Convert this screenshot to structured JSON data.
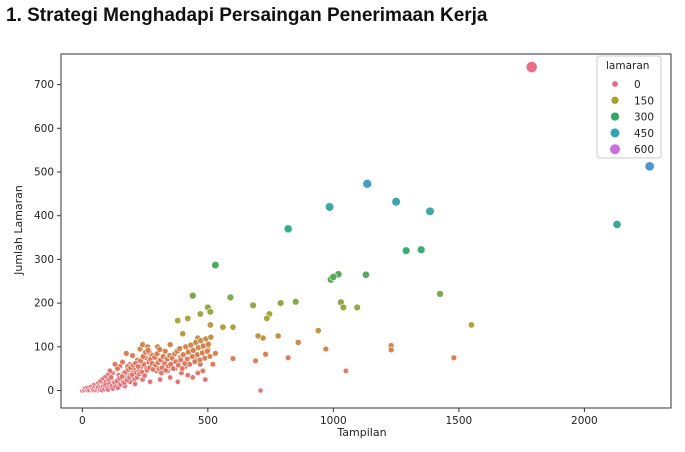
{
  "heading": "1. Strategi Menghadapi Persaingan Penerimaan Kerja",
  "chart_data": {
    "type": "scatter",
    "title": "",
    "xlabel": "Tampilan",
    "ylabel": "Jumlah Lamaran",
    "xlim": [
      -85,
      2345
    ],
    "ylim": [
      -40,
      770
    ],
    "xticks": [
      0,
      500,
      1000,
      1500,
      2000
    ],
    "yticks": [
      0,
      100,
      200,
      300,
      400,
      500,
      600,
      700
    ],
    "grid": false,
    "legend": {
      "title": "lamaran",
      "placement": "top-right",
      "entries": [
        {
          "label": "0",
          "color": "#e8687f",
          "size": 4
        },
        {
          "label": "150",
          "color": "#a8a130",
          "size": 5.5
        },
        {
          "label": "300",
          "color": "#33a662",
          "size": 6.5
        },
        {
          "label": "450",
          "color": "#31a3b4",
          "size": 7.2
        },
        {
          "label": "600",
          "color": "#cc6ee0",
          "size": 8.2
        }
      ]
    },
    "hue": "lamaran",
    "points": [
      [
        1790,
        740
      ],
      [
        2260,
        513
      ],
      [
        1135,
        473
      ],
      [
        1250,
        432
      ],
      [
        1385,
        410
      ],
      [
        985,
        420
      ],
      [
        2130,
        380
      ],
      [
        820,
        370
      ],
      [
        1290,
        320
      ],
      [
        1350,
        322
      ],
      [
        530,
        287
      ],
      [
        1020,
        266
      ],
      [
        1130,
        265
      ],
      [
        990,
        254
      ],
      [
        1425,
        221
      ],
      [
        1000,
        260
      ],
      [
        440,
        217
      ],
      [
        590,
        213
      ],
      [
        850,
        203
      ],
      [
        680,
        195
      ],
      [
        790,
        200
      ],
      [
        1030,
        202
      ],
      [
        1095,
        190
      ],
      [
        1040,
        190
      ],
      [
        500,
        190
      ],
      [
        470,
        175
      ],
      [
        510,
        180
      ],
      [
        745,
        175
      ],
      [
        735,
        165
      ],
      [
        1550,
        150
      ],
      [
        420,
        165
      ],
      [
        380,
        160
      ],
      [
        560,
        145
      ],
      [
        600,
        145
      ],
      [
        510,
        150
      ],
      [
        940,
        137
      ],
      [
        780,
        125
      ],
      [
        720,
        120
      ],
      [
        700,
        125
      ],
      [
        400,
        130
      ],
      [
        1230,
        103
      ],
      [
        1230,
        93
      ],
      [
        970,
        95
      ],
      [
        730,
        83
      ],
      [
        690,
        68
      ],
      [
        530,
        85
      ],
      [
        600,
        73
      ],
      [
        820,
        75
      ],
      [
        860,
        110
      ],
      [
        1480,
        75
      ],
      [
        1050,
        45
      ],
      [
        710,
        0
      ],
      [
        460,
        120
      ],
      [
        480,
        100
      ],
      [
        500,
        95
      ],
      [
        520,
        60
      ],
      [
        430,
        90
      ],
      [
        350,
        105
      ],
      [
        330,
        90
      ],
      [
        300,
        100
      ],
      [
        270,
        85
      ],
      [
        250,
        75
      ],
      [
        230,
        95
      ],
      [
        220,
        70
      ],
      [
        200,
        80
      ],
      [
        190,
        60
      ],
      [
        180,
        55
      ],
      [
        175,
        85
      ],
      [
        300,
        70
      ],
      [
        320,
        55
      ],
      [
        360,
        65
      ],
      [
        390,
        75
      ],
      [
        410,
        55
      ],
      [
        450,
        70
      ],
      [
        470,
        60
      ],
      [
        480,
        45
      ],
      [
        240,
        105
      ],
      [
        260,
        100
      ],
      [
        280,
        80
      ],
      [
        160,
        65
      ],
      [
        150,
        55
      ],
      [
        140,
        50
      ],
      [
        130,
        60
      ],
      [
        120,
        40
      ],
      [
        110,
        45
      ],
      [
        100,
        35
      ],
      [
        90,
        30
      ],
      [
        80,
        25
      ],
      [
        70,
        20
      ],
      [
        60,
        15
      ],
      [
        50,
        10
      ],
      [
        40,
        8
      ],
      [
        30,
        5
      ],
      [
        20,
        3
      ],
      [
        10,
        2
      ],
      [
        5,
        0
      ],
      [
        15,
        1
      ],
      [
        25,
        4
      ],
      [
        35,
        6
      ],
      [
        45,
        12
      ],
      [
        55,
        5
      ],
      [
        65,
        10
      ],
      [
        75,
        8
      ],
      [
        85,
        15
      ],
      [
        95,
        20
      ],
      [
        105,
        25
      ],
      [
        115,
        30
      ],
      [
        125,
        20
      ],
      [
        135,
        15
      ],
      [
        145,
        35
      ],
      [
        155,
        25
      ],
      [
        165,
        40
      ],
      [
        170,
        30
      ],
      [
        185,
        35
      ],
      [
        195,
        45
      ],
      [
        205,
        50
      ],
      [
        210,
        40
      ],
      [
        225,
        45
      ],
      [
        235,
        55
      ],
      [
        245,
        60
      ],
      [
        255,
        50
      ],
      [
        265,
        65
      ],
      [
        275,
        55
      ],
      [
        285,
        60
      ],
      [
        295,
        45
      ],
      [
        305,
        50
      ],
      [
        315,
        40
      ],
      [
        340,
        45
      ],
      [
        370,
        50
      ],
      [
        395,
        40
      ],
      [
        420,
        35
      ],
      [
        440,
        30
      ],
      [
        460,
        40
      ],
      [
        490,
        25
      ],
      [
        380,
        20
      ],
      [
        350,
        30
      ],
      [
        310,
        25
      ],
      [
        270,
        20
      ],
      [
        240,
        25
      ],
      [
        210,
        15
      ],
      [
        190,
        20
      ],
      [
        170,
        10
      ],
      [
        150,
        12
      ],
      [
        130,
        8
      ],
      [
        115,
        5
      ],
      [
        100,
        10
      ],
      [
        90,
        5
      ],
      [
        80,
        0
      ],
      [
        70,
        3
      ],
      [
        60,
        0
      ],
      [
        50,
        2
      ],
      [
        40,
        0
      ],
      [
        30,
        0
      ],
      [
        20,
        0
      ],
      [
        10,
        0
      ],
      [
        0,
        0
      ],
      [
        5,
        3
      ],
      [
        8,
        1
      ],
      [
        12,
        5
      ],
      [
        18,
        2
      ],
      [
        22,
        6
      ],
      [
        28,
        1
      ],
      [
        33,
        8
      ],
      [
        38,
        3
      ],
      [
        42,
        2
      ],
      [
        48,
        6
      ],
      [
        52,
        1
      ],
      [
        58,
        4
      ],
      [
        62,
        7
      ],
      [
        68,
        2
      ],
      [
        72,
        5
      ],
      [
        78,
        1
      ],
      [
        82,
        9
      ],
      [
        88,
        3
      ],
      [
        92,
        12
      ],
      [
        98,
        6
      ],
      [
        102,
        2
      ],
      [
        108,
        15
      ],
      [
        112,
        8
      ],
      [
        118,
        11
      ],
      [
        122,
        4
      ],
      [
        128,
        18
      ],
      [
        132,
        9
      ],
      [
        138,
        22
      ],
      [
        142,
        6
      ],
      [
        148,
        28
      ],
      [
        152,
        14
      ],
      [
        158,
        32
      ],
      [
        162,
        20
      ],
      [
        168,
        18
      ],
      [
        172,
        42
      ],
      [
        178,
        24
      ],
      [
        182,
        48
      ],
      [
        188,
        30
      ],
      [
        192,
        52
      ],
      [
        198,
        36
      ],
      [
        202,
        58
      ],
      [
        208,
        26
      ],
      [
        212,
        62
      ],
      [
        218,
        30
      ],
      [
        222,
        55
      ],
      [
        228,
        38
      ],
      [
        232,
        68
      ],
      [
        238,
        42
      ],
      [
        242,
        78
      ],
      [
        248,
        34
      ],
      [
        252,
        88
      ],
      [
        258,
        46
      ],
      [
        262,
        92
      ],
      [
        268,
        52
      ],
      [
        272,
        72
      ],
      [
        278,
        62
      ],
      [
        282,
        48
      ],
      [
        288,
        76
      ],
      [
        292,
        58
      ],
      [
        298,
        84
      ],
      [
        302,
        64
      ],
      [
        308,
        94
      ],
      [
        312,
        70
      ],
      [
        318,
        52
      ],
      [
        322,
        78
      ],
      [
        328,
        62
      ],
      [
        332,
        46
      ],
      [
        338,
        72
      ],
      [
        342,
        56
      ],
      [
        348,
        80
      ],
      [
        352,
        60
      ],
      [
        358,
        74
      ],
      [
        362,
        50
      ],
      [
        368,
        84
      ],
      [
        372,
        66
      ],
      [
        378,
        90
      ],
      [
        382,
        58
      ],
      [
        388,
        96
      ],
      [
        392,
        70
      ],
      [
        398,
        50
      ],
      [
        402,
        82
      ],
      [
        408,
        62
      ],
      [
        412,
        100
      ],
      [
        418,
        72
      ],
      [
        422,
        88
      ],
      [
        428,
        60
      ],
      [
        432,
        104
      ],
      [
        438,
        78
      ],
      [
        442,
        92
      ],
      [
        448,
        66
      ],
      [
        452,
        110
      ],
      [
        458,
        82
      ],
      [
        462,
        98
      ],
      [
        468,
        70
      ],
      [
        472,
        114
      ],
      [
        478,
        86
      ],
      [
        482,
        102
      ],
      [
        488,
        74
      ],
      [
        492,
        118
      ],
      [
        498,
        90
      ],
      [
        502,
        106
      ],
      [
        508,
        78
      ],
      [
        512,
        122
      ]
    ]
  }
}
